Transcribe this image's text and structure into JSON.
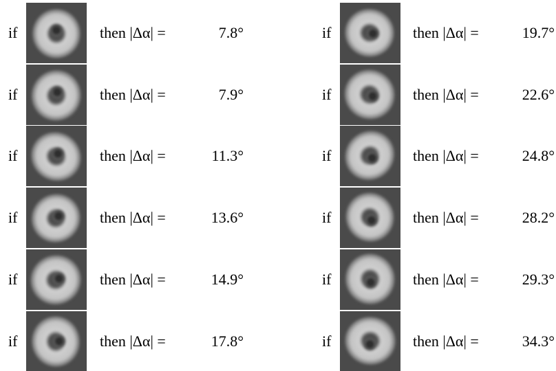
{
  "columns": [
    {
      "rows": [
        {
          "if": "if",
          "then": "then |Δα| =",
          "value": "7.8°"
        },
        {
          "if": "if",
          "then": "then |Δα| =",
          "value": "7.9°"
        },
        {
          "if": "if",
          "then": "then |Δα| =",
          "value": "11.3°"
        },
        {
          "if": "if",
          "then": "then |Δα| =",
          "value": "13.6°"
        },
        {
          "if": "if",
          "then": "then |Δα| =",
          "value": "14.9°"
        },
        {
          "if": "if",
          "then": "then |Δα| =",
          "value": "17.8°"
        }
      ]
    },
    {
      "rows": [
        {
          "if": "if",
          "then": "then |Δα| =",
          "value": "19.7°"
        },
        {
          "if": "if",
          "then": "then |Δα| =",
          "value": "22.6°"
        },
        {
          "if": "if",
          "then": "then |Δα| =",
          "value": "24.8°"
        },
        {
          "if": "if",
          "then": "then |Δα| =",
          "value": "28.2°"
        },
        {
          "if": "if",
          "then": "then |Δα| =",
          "value": "29.3°"
        },
        {
          "if": "if",
          "then": "then |Δα| =",
          "value": "34.3°"
        }
      ]
    }
  ]
}
